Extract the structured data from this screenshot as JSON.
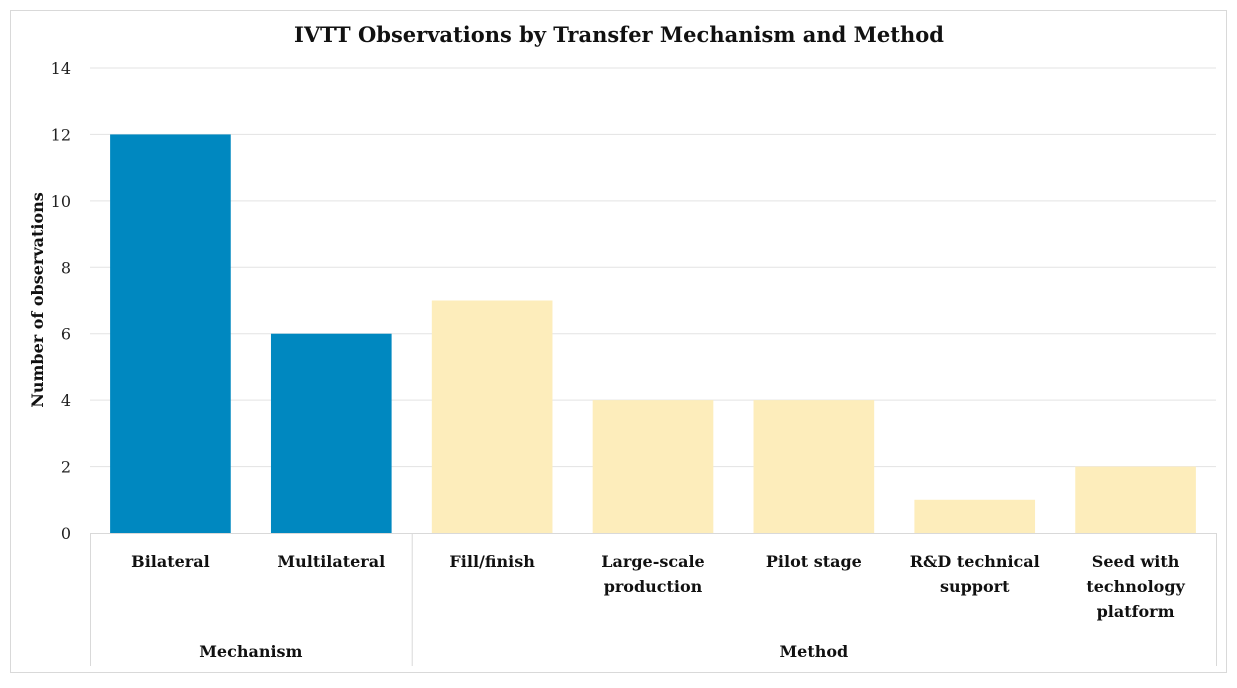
{
  "chart_data": {
    "type": "bar",
    "title": "IVTT Observations by Transfer Mechanism and Method",
    "ylabel": "Number of observations",
    "xlabel": "",
    "ylim": [
      0,
      14
    ],
    "yticks": [
      0,
      2,
      4,
      6,
      8,
      10,
      12,
      14
    ],
    "grid": true,
    "legend": "none",
    "categories": [
      [
        "Bilateral"
      ],
      [
        "Multilateral"
      ],
      [
        "Fill/finish"
      ],
      [
        "Large-scale",
        "production"
      ],
      [
        "Pilot stage"
      ],
      [
        "R&D technical",
        "support"
      ],
      [
        "Seed with",
        "technology",
        "platform"
      ]
    ],
    "values": [
      12,
      6,
      7,
      4,
      4,
      1,
      2
    ],
    "groups": [
      {
        "label": "Mechanism",
        "count": 2,
        "color": "#0088c0"
      },
      {
        "label": "Method",
        "count": 5,
        "color": "#fdedbb"
      }
    ]
  }
}
